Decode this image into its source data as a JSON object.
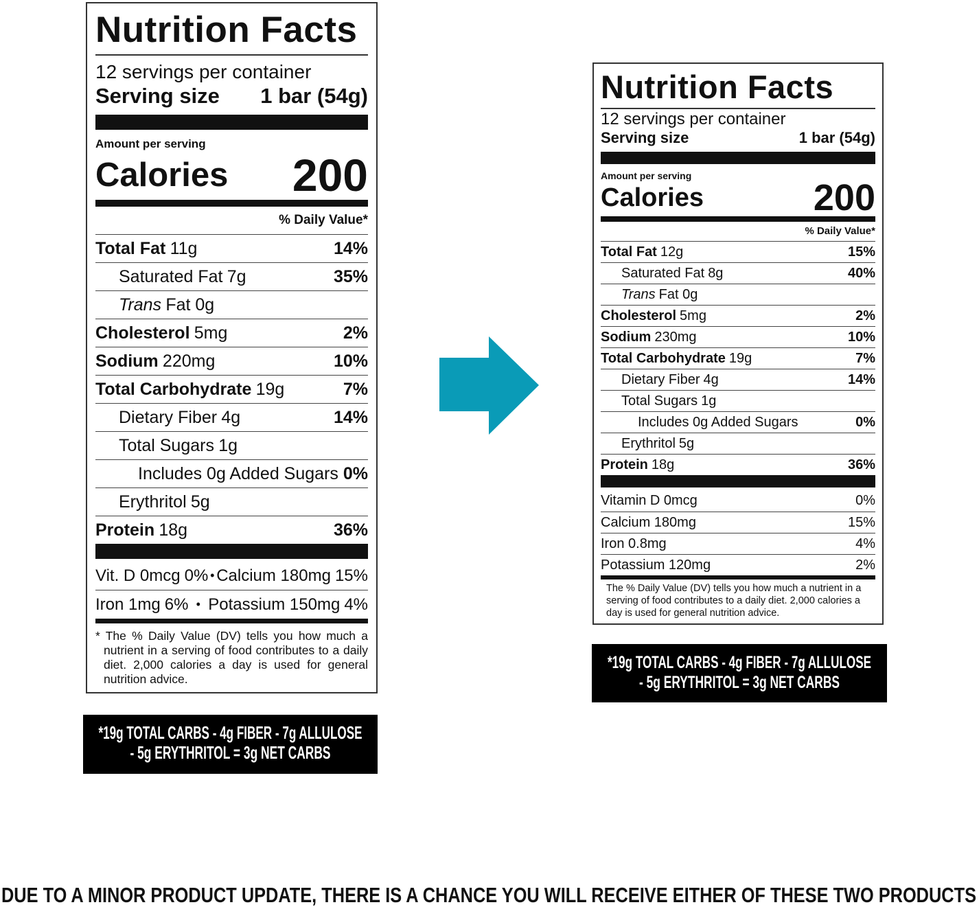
{
  "labels": [
    {
      "title": "Nutrition Facts",
      "servings": "12 servings per container",
      "serving_size_label": "Serving size",
      "serving_size_value": "1 bar (54g)",
      "amount_per_serving": "Amount per serving",
      "calories_label": "Calories",
      "calories_value": 200,
      "daily_value_header": "% Daily Value*",
      "rows": [
        {
          "name": "Total Fat",
          "amount": "11g",
          "dv": "14%"
        },
        {
          "name": "Saturated Fat",
          "amount": "7g",
          "dv": "35%"
        },
        {
          "name": "Trans",
          "amount": "Fat 0g"
        },
        {
          "name": "Cholesterol",
          "amount": "5mg",
          "dv": "2%"
        },
        {
          "name": "Sodium",
          "amount": "220mg",
          "dv": "10%"
        },
        {
          "name": "Total Carbohydrate",
          "amount": "19g",
          "dv": "7%"
        },
        {
          "name": "Dietary Fiber",
          "amount": "4g",
          "dv": "14%"
        },
        {
          "name": "Total Sugars",
          "amount": "1g"
        },
        {
          "name": "Includes 0g Added Sugars",
          "dv": "0%"
        },
        {
          "name": "Erythritol",
          "amount": "5g"
        },
        {
          "name": "Protein",
          "amount": "18g",
          "dv": "36%"
        }
      ],
      "vitamins": [
        {
          "name": "Vit. D 0mcg",
          "dv": "0%"
        },
        {
          "name": "Calcium 180mg",
          "dv": "15%"
        },
        {
          "name": "Iron 1mg",
          "dv": "6%"
        },
        {
          "name": "Potassium 150mg",
          "dv": "4%"
        }
      ],
      "footnote": "* The % Daily Value (DV) tells you how much a nutrient in a serving of food contributes to a daily diet. 2,000 calories a day is used for general nutrition advice.",
      "net_carbs": [
        "*19g TOTAL CARBS - 4g FIBER - 7g ALLULOSE",
        "- 5g ERYTHRITOL = 3g NET CARBS"
      ]
    },
    {
      "title": "Nutrition Facts",
      "servings": "12 servings per container",
      "serving_size_label": "Serving size",
      "serving_size_value": "1 bar (54g)",
      "amount_per_serving": "Amount per serving",
      "calories_label": "Calories",
      "calories_value": 200,
      "daily_value_header": "% Daily Value*",
      "rows": [
        {
          "name": "Total Fat",
          "amount": "12g",
          "dv": "15%"
        },
        {
          "name": "Saturated Fat",
          "amount": "8g",
          "dv": "40%"
        },
        {
          "name": "Trans",
          "amount": "Fat 0g"
        },
        {
          "name": "Cholesterol",
          "amount": "5mg",
          "dv": "2%"
        },
        {
          "name": "Sodium",
          "amount": "230mg",
          "dv": "10%"
        },
        {
          "name": "Total Carbohydrate",
          "amount": "19g",
          "dv": "7%"
        },
        {
          "name": "Dietary Fiber",
          "amount": "4g",
          "dv": "14%"
        },
        {
          "name": "Total Sugars",
          "amount": "1g"
        },
        {
          "name": "Includes 0g Added Sugars",
          "dv": "0%"
        },
        {
          "name": "Erythritol",
          "amount": "5g"
        },
        {
          "name": "Protein",
          "amount": "18g",
          "dv": "36%"
        }
      ],
      "vitamins": [
        {
          "name": "Vitamin D 0mcg",
          "dv": "0%"
        },
        {
          "name": "Calcium 180mg",
          "dv": "15%"
        },
        {
          "name": "Iron 0.8mg",
          "dv": "4%"
        },
        {
          "name": "Potassium 120mg",
          "dv": "2%"
        }
      ],
      "footnote": "The % Daily Value (DV) tells you how much a nutrient in a serving of food contributes to a daily diet. 2,000 calories a day is used for general nutrition advice.",
      "net_carbs": [
        "*19g TOTAL CARBS - 4g FIBER - 7g ALLULOSE",
        "- 5g ERYTHRITOL = 3g NET CARBS"
      ]
    }
  ],
  "notice": "DUE TO A MINOR PRODUCT UPDATE, THERE IS A CHANCE YOU WILL RECEIVE EITHER OF THESE TWO PRODUCTS"
}
